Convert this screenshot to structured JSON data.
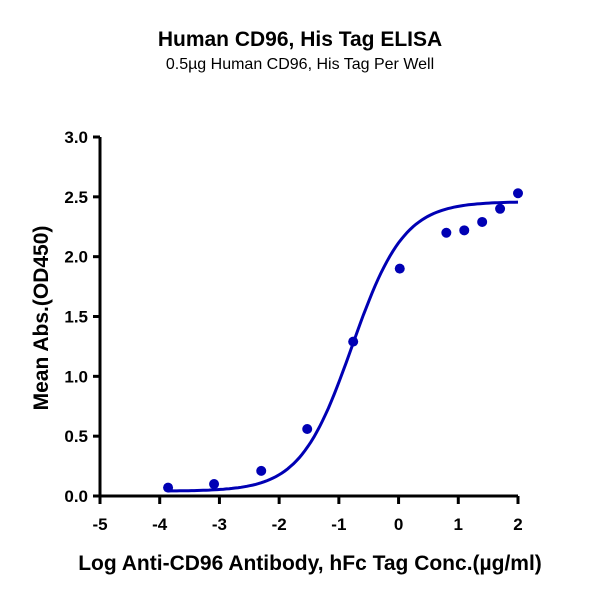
{
  "title": "Human CD96, His Tag ELISA",
  "subtitle": "0.5µg Human CD96, His Tag Per Well",
  "colors": {
    "series": "#0000b4",
    "axis": "#000000"
  },
  "chart_data": {
    "type": "scatter",
    "title": "Human CD96, His Tag ELISA",
    "subtitle": "0.5µg Human CD96, His Tag Per Well",
    "xlabel": "Log Anti-CD96 Antibody, hFc Tag Conc.(µg/ml)",
    "ylabel": "Mean Abs.(OD450)",
    "xlim": [
      -5,
      2
    ],
    "ylim": [
      0,
      3.0
    ],
    "xticks": [
      -5,
      -4,
      -3,
      -2,
      -1,
      0,
      1,
      2
    ],
    "yticks": [
      "0.0",
      "0.5",
      "1.0",
      "1.5",
      "2.0",
      "2.5",
      "3.0"
    ],
    "grid": false,
    "legend": null,
    "series": [
      {
        "name": "Human CD96, His Tag",
        "x": [
          -3.86,
          -3.09,
          -2.3,
          -1.53,
          -0.76,
          0.02,
          0.8,
          1.1,
          1.4,
          1.7,
          2.0
        ],
        "y": [
          0.07,
          0.1,
          0.21,
          0.56,
          1.29,
          1.9,
          2.2,
          2.22,
          2.29,
          2.4,
          2.53
        ],
        "fit": "4PL sigmoid",
        "fit_params": {
          "bottom": 0.04,
          "top": 2.46,
          "logEC50": -0.78,
          "hill": 1.0
        }
      }
    ]
  }
}
